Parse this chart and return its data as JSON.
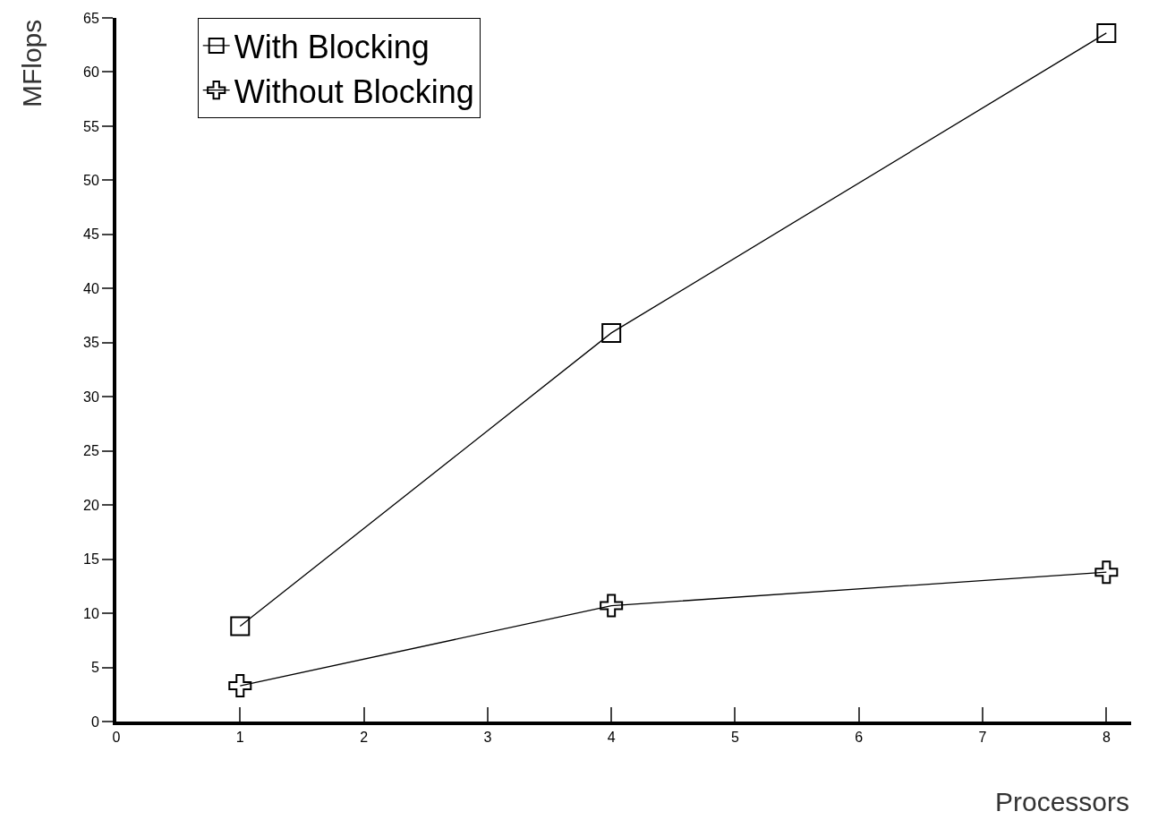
{
  "chart_data": {
    "type": "line",
    "xlabel": "Processors",
    "ylabel": "MFlops",
    "x": [
      1,
      4,
      8
    ],
    "series": [
      {
        "name": "With Blocking",
        "color": "#000000",
        "marker": "square",
        "values": [
          8.8,
          35.9,
          63.6
        ]
      },
      {
        "name": "Without Blocking",
        "color": "#000000",
        "marker": "cross",
        "values": [
          3.3,
          10.7,
          13.8
        ]
      }
    ],
    "xlim": [
      0,
      8.2
    ],
    "xticks": [
      0,
      1,
      2,
      3,
      4,
      5,
      6,
      7,
      8
    ],
    "ylim": [
      0,
      65
    ],
    "yticks": [
      0,
      5,
      10,
      15,
      20,
      25,
      30,
      35,
      40,
      45,
      50,
      55,
      60,
      65
    ],
    "legend": "top left",
    "line_style": "solid"
  }
}
